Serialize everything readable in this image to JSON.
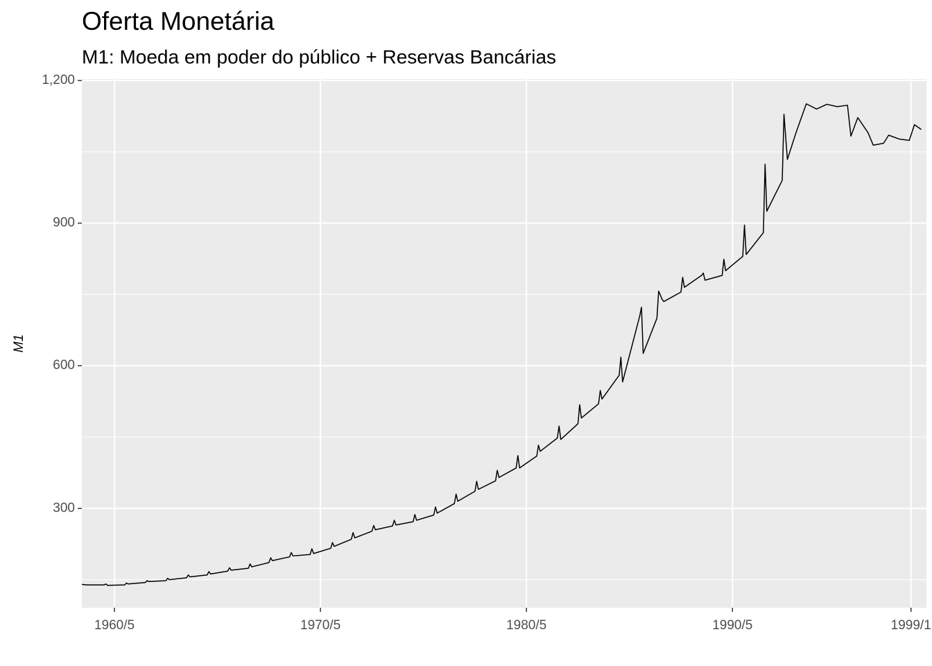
{
  "chart_data": {
    "type": "line",
    "title": "Oferta Monetária",
    "subtitle": "M1: Moeda em poder do público + Reservas Bancárias",
    "y_label": "M1",
    "color": "#000000",
    "grid": true,
    "x": [
      "1958/10",
      "1959/1",
      "1959/11",
      "1959/12",
      "1960/1",
      "1960/11",
      "1960/12",
      "1961/1",
      "1961/11",
      "1961/12",
      "1962/1",
      "1962/11",
      "1962/12",
      "1963/1",
      "1963/11",
      "1963/12",
      "1964/1",
      "1964/11",
      "1964/12",
      "1965/1",
      "1965/11",
      "1965/12",
      "1966/1",
      "1966/11",
      "1966/12",
      "1967/1",
      "1967/11",
      "1967/12",
      "1968/1",
      "1968/11",
      "1968/12",
      "1969/1",
      "1969/11",
      "1969/12",
      "1970/1",
      "1970/11",
      "1970/12",
      "1971/1",
      "1971/11",
      "1971/12",
      "1972/1",
      "1972/11",
      "1972/12",
      "1973/1",
      "1973/11",
      "1973/12",
      "1974/1",
      "1974/11",
      "1974/12",
      "1975/1",
      "1975/11",
      "1975/12",
      "1976/1",
      "1976/11",
      "1976/12",
      "1977/1",
      "1977/11",
      "1977/12",
      "1978/1",
      "1978/11",
      "1978/12",
      "1979/1",
      "1979/11",
      "1979/12",
      "1980/1",
      "1980/11",
      "1980/12",
      "1981/1",
      "1981/11",
      "1981/12",
      "1982/1",
      "1982/11",
      "1982/12",
      "1983/1",
      "1983/11",
      "1983/12",
      "1984/1",
      "1984/11",
      "1984/12",
      "1985/1",
      "1985/11",
      "1985/12",
      "1986/1",
      "1986/9",
      "1986/10",
      "1986/12",
      "1987/1",
      "1987/11",
      "1987/12",
      "1988/1",
      "1988/11",
      "1988/12",
      "1989/1",
      "1989/11",
      "1989/12",
      "1990/1",
      "1990/11",
      "1990/12",
      "1991/1",
      "1991/11",
      "1991/12",
      "1992/1",
      "1992/10",
      "1992/11",
      "1993/1",
      "1993/6",
      "1993/12",
      "1994/6",
      "1994/12",
      "1995/6",
      "1995/12",
      "1996/2",
      "1996/6",
      "1996/12",
      "1997/3",
      "1997/9",
      "1997/12",
      "1998/6",
      "1998/12",
      "1999/3",
      "1999/7"
    ],
    "values": [
      140,
      139,
      139,
      141,
      138,
      139,
      143,
      141,
      144,
      148,
      146,
      148,
      153,
      150,
      154,
      160,
      156,
      160,
      167,
      162,
      168,
      175,
      170,
      174,
      183,
      177,
      186,
      196,
      190,
      198,
      207,
      200,
      203,
      215,
      205,
      216,
      228,
      220,
      235,
      249,
      238,
      252,
      264,
      255,
      263,
      275,
      265,
      272,
      287,
      275,
      286,
      303,
      290,
      310,
      330,
      315,
      336,
      357,
      340,
      358,
      380,
      365,
      385,
      411,
      385,
      410,
      433,
      420,
      448,
      473,
      445,
      478,
      518,
      490,
      520,
      548,
      530,
      580,
      618,
      566,
      705,
      723,
      626,
      700,
      757,
      740,
      735,
      755,
      786,
      765,
      790,
      795,
      780,
      790,
      824,
      800,
      830,
      896,
      834,
      880,
      1024,
      925,
      990,
      1129,
      1034,
      1090,
      1151,
      1140,
      1150,
      1145,
      1148,
      1083,
      1122,
      1090,
      1064,
      1068,
      1085,
      1077,
      1074,
      1107,
      1097
    ],
    "xlim": [
      "1958/10",
      "1999/10"
    ],
    "xticks": [
      "1960/5",
      "1970/5",
      "1980/5",
      "1990/5",
      "1999/1"
    ],
    "ylim": [
      91,
      1203
    ],
    "yticks": [
      300,
      600,
      900,
      {
        "value": 1200,
        "label": "1,200"
      }
    ]
  }
}
